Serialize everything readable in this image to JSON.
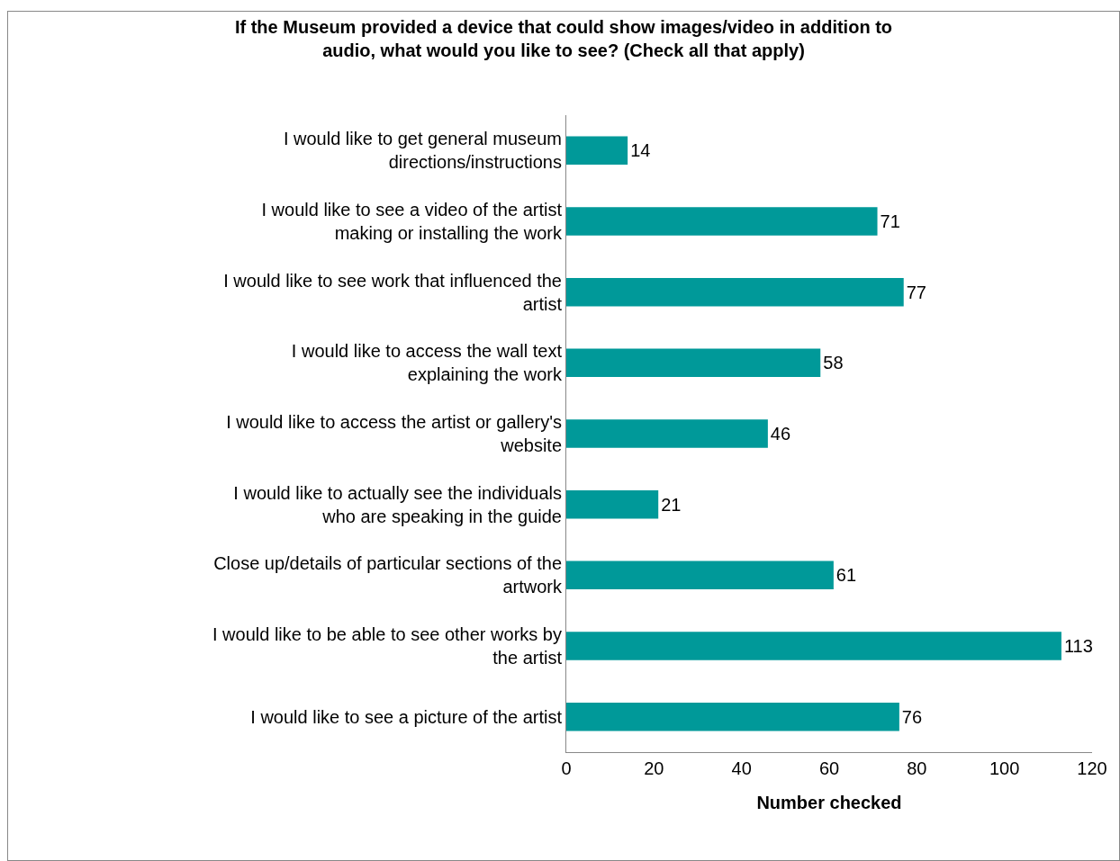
{
  "chart_data": {
    "type": "bar",
    "orientation": "horizontal",
    "title": "If the Museum provided a device that could show images/video in addition to audio, what would you like to see? (Check all that apply)",
    "xlabel": "Number checked",
    "categories": [
      "I would like to get general museum directions/instructions",
      "I would like to see a video of the artist making or installing the work",
      "I would like to see work that influenced the artist",
      "I would like to access the wall text explaining the work",
      "I would like to access the artist or gallery's website",
      "I would like to actually see the individuals who are speaking in the guide",
      "Close up/details of particular sections of the artwork",
      "I would like to be able to see other works by the artist",
      "I would like to see a picture of the artist"
    ],
    "values": [
      14,
      71,
      77,
      58,
      46,
      21,
      61,
      113,
      76
    ],
    "color": "#009999",
    "xlim": [
      0,
      120
    ],
    "xticks": [
      0,
      20,
      40,
      60,
      80,
      100,
      120
    ],
    "grid": false,
    "data_labels": true
  }
}
